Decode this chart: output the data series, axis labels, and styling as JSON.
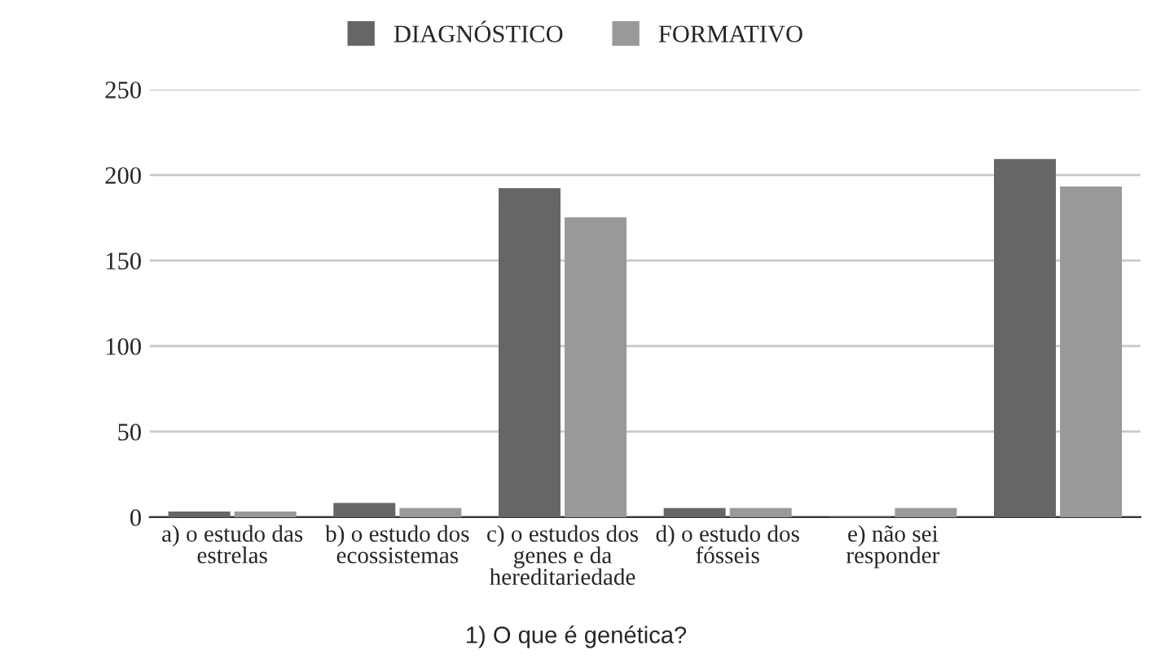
{
  "chart_data": {
    "type": "bar",
    "xlabel": "1) O que é genética?",
    "categories": [
      "a) o estudo das\nestrelas",
      "b) o estudo dos\necossistemas",
      "c) o estudos dos\ngenes e da\nhereditariedade",
      "d) o estudo dos\nfósseis",
      "e) não sei\nresponder",
      null
    ],
    "series": [
      {
        "name": "DIAGNÓSTICO",
        "color": "#666666",
        "values": [
          3,
          8,
          192,
          5,
          0,
          209
        ]
      },
      {
        "name": "FORMATIVO",
        "color": "#999999",
        "values": [
          3,
          5,
          175,
          5,
          5,
          193
        ]
      }
    ],
    "ylim": [
      0,
      250
    ],
    "yticks": [
      0,
      50,
      100,
      150,
      200,
      250
    ],
    "grid": "y",
    "legend": "top"
  }
}
